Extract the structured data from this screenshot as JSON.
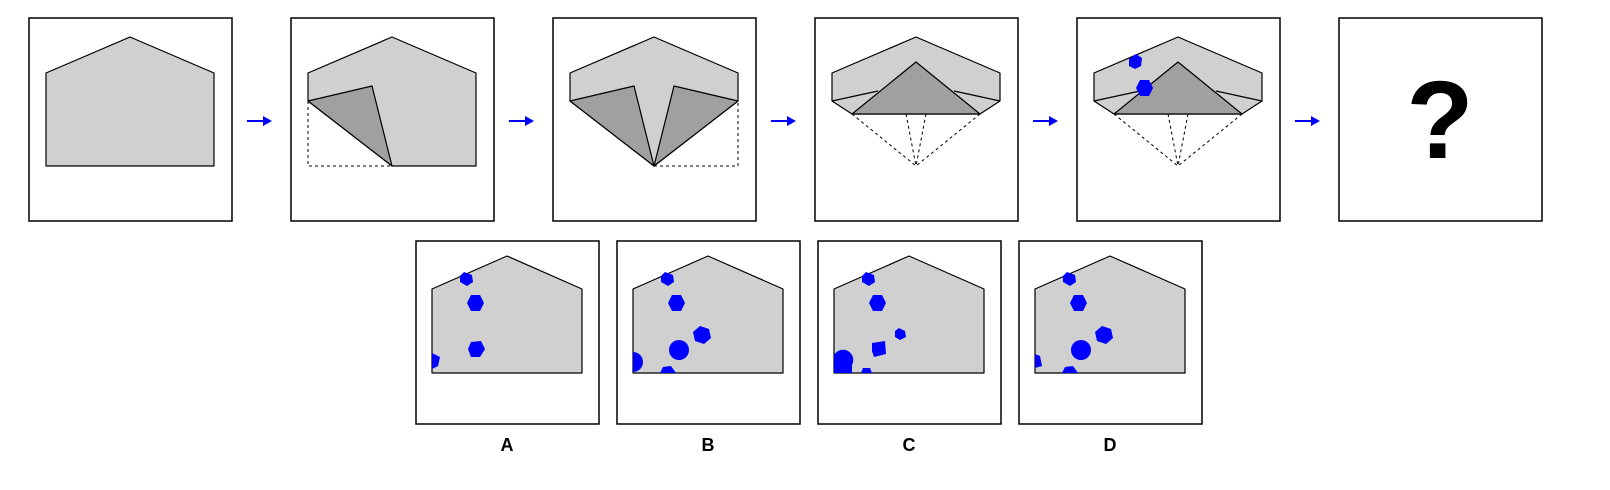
{
  "puzzle": {
    "question_mark": "?",
    "options": [
      {
        "label": "A"
      },
      {
        "label": "B"
      },
      {
        "label": "C"
      },
      {
        "label": "D"
      }
    ]
  },
  "colors": {
    "paper": "#d0d0d0",
    "folded_flap": "#a0a0a0",
    "hole": "#0000ff",
    "arrow": "#0000ff"
  }
}
